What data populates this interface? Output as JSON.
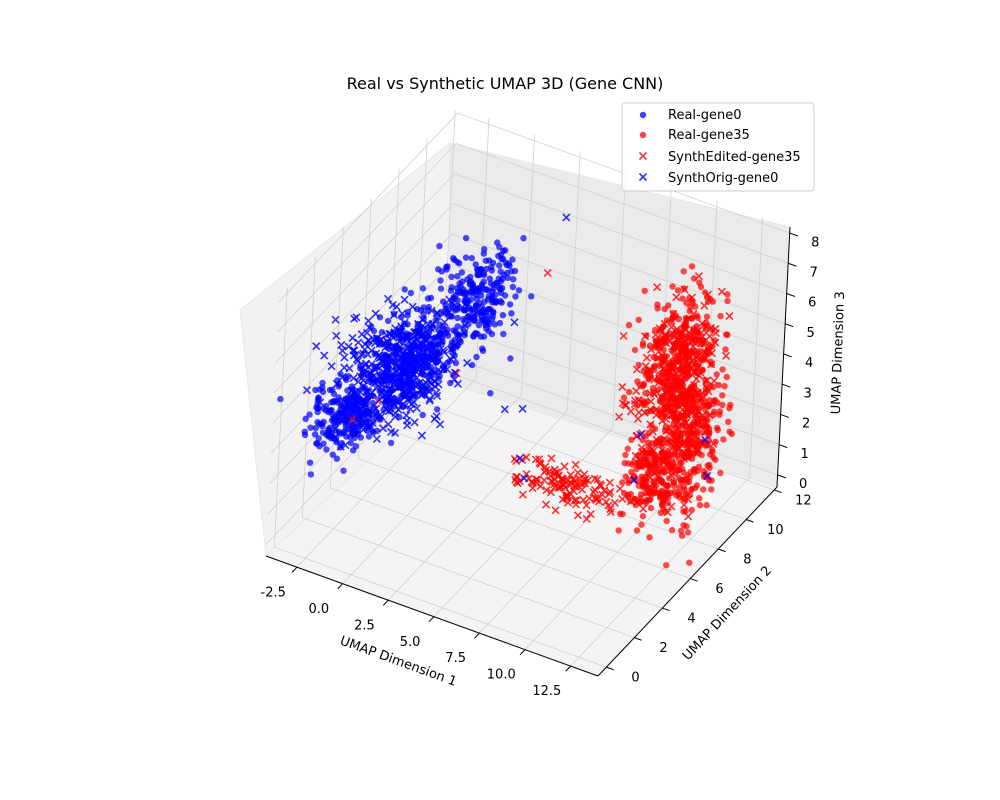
{
  "chart_data": {
    "type": "scatter",
    "projection": "3d",
    "title": "Real vs Synthetic UMAP 3D (Gene CNN)",
    "xlabel": "UMAP Dimension 1",
    "ylabel": "UMAP Dimension 2",
    "zlabel": "UMAP Dimension 3",
    "xlim": [
      -4.2,
      14.0
    ],
    "ylim": [
      -0.6,
      12.2
    ],
    "zlim": [
      -0.4,
      8.2
    ],
    "x_ticks": [
      "-2.5",
      "0.0",
      "2.5",
      "5.0",
      "7.5",
      "10.0",
      "12.5"
    ],
    "y_ticks": [
      "0",
      "2",
      "4",
      "6",
      "8",
      "10",
      "12"
    ],
    "z_ticks": [
      "0",
      "1",
      "2",
      "3",
      "4",
      "5",
      "6",
      "7",
      "8"
    ],
    "grid": true,
    "legend_position": "top-right",
    "series": [
      {
        "name": "Real-gene0",
        "marker": "circle",
        "color": "#0000ff",
        "clusters": [
          {
            "center": [
              -2.0,
              2.0,
              3.5
            ],
            "spread": [
              0.8,
              0.9,
              0.4
            ],
            "n": 260
          },
          {
            "center": [
              -0.5,
              4.5,
              4.5
            ],
            "spread": [
              0.9,
              1.0,
              0.6
            ],
            "n": 280
          },
          {
            "center": [
              1.0,
              7.0,
              5.5
            ],
            "spread": [
              0.8,
              1.0,
              0.7
            ],
            "n": 260
          }
        ]
      },
      {
        "name": "Real-gene35",
        "marker": "circle",
        "color": "#ff0000",
        "clusters": [
          {
            "center": [
              10.5,
              9.0,
              4.5
            ],
            "spread": [
              0.6,
              1.0,
              1.0
            ],
            "n": 320
          },
          {
            "center": [
              11.8,
              8.5,
              2.5
            ],
            "spread": [
              0.5,
              1.1,
              1.2
            ],
            "n": 320
          },
          {
            "center": [
              11.0,
              6.8,
              1.8
            ],
            "spread": [
              0.6,
              0.7,
              0.6
            ],
            "n": 160
          }
        ]
      },
      {
        "name": "SynthEdited-gene35",
        "marker": "x",
        "color": "#ff0000",
        "clusters": [
          {
            "center": [
              10.8,
              8.8,
              3.8
            ],
            "spread": [
              0.8,
              1.2,
              1.3
            ],
            "n": 260
          },
          {
            "center": [
              7.0,
              6.2,
              1.0
            ],
            "spread": [
              1.6,
              0.5,
              0.2
            ],
            "n": 120
          }
        ],
        "points": [
          [
            3.0,
            9.5,
            5.6
          ],
          [
            -2.2,
            2.6,
            3.0
          ],
          [
            -1.5,
            3.5,
            3.3
          ],
          [
            0.5,
            6.5,
            3.2
          ]
        ]
      },
      {
        "name": "SynthOrig-gene0",
        "marker": "x",
        "color": "#0000ff",
        "clusters": [
          {
            "center": [
              -1.0,
              4.0,
              4.2
            ],
            "spread": [
              1.2,
              1.3,
              0.7
            ],
            "n": 360
          }
        ],
        "points": [
          [
            3.5,
            10.0,
            7.3
          ],
          [
            4.5,
            6.0,
            1.5
          ],
          [
            5.0,
            5.7,
            1.1
          ],
          [
            10.0,
            7.0,
            1.5
          ],
          [
            13.0,
            8.0,
            3.0
          ],
          [
            12.5,
            9.0,
            1.2
          ],
          [
            9.5,
            8.0,
            2.4
          ],
          [
            3.2,
            6.5,
            2.6
          ],
          [
            3.8,
            7.0,
            2.5
          ]
        ]
      }
    ]
  }
}
